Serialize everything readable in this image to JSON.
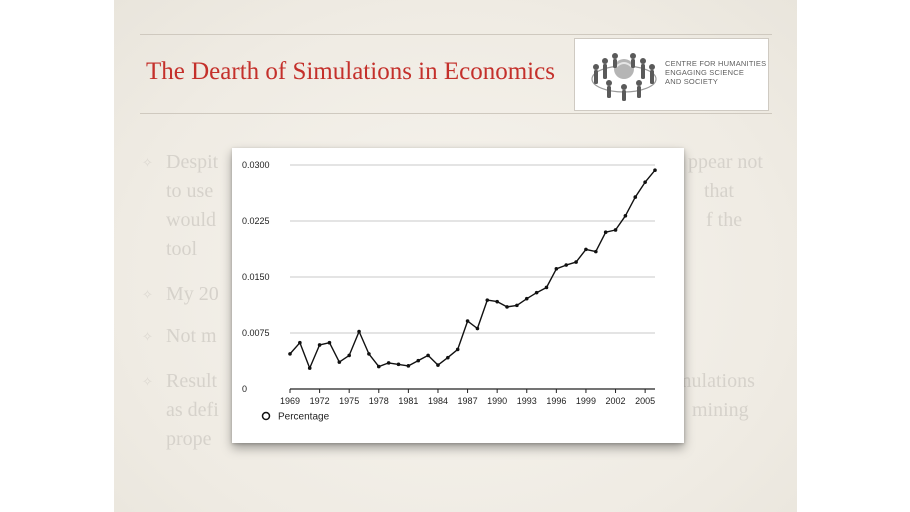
{
  "slide": {
    "title": "The Dearth of Simulations in Economics",
    "logo": {
      "icon": "people-circle-globe-icon",
      "lines": [
        "CENTRE FOR HUMANITIES",
        "ENGAGING SCIENCE",
        "AND SOCIETY"
      ]
    },
    "bullets": [
      {
        "left": "Despit",
        "right": "ppear not"
      },
      {
        "left": "to use",
        "right": "that"
      },
      {
        "left": "would",
        "right": "f the"
      },
      {
        "left": "tool",
        "right": ""
      },
      {
        "left": "My 20",
        "right": ""
      },
      {
        "left": "Not m",
        "right": ""
      },
      {
        "left": "Result",
        "right": "mulations"
      },
      {
        "left": "as defi",
        "right": "mining"
      },
      {
        "left": "prope",
        "right": ""
      }
    ],
    "accent_color": "#c4302b"
  },
  "chart_data": {
    "type": "line",
    "title": "",
    "xlabel": "",
    "ylabel": "",
    "x": [
      1969,
      1970,
      1971,
      1972,
      1973,
      1974,
      1975,
      1976,
      1977,
      1978,
      1979,
      1980,
      1981,
      1982,
      1983,
      1984,
      1985,
      1986,
      1987,
      1988,
      1989,
      1990,
      1991,
      1992,
      1993,
      1994,
      1995,
      1996,
      1997,
      1998,
      1999,
      2000,
      2001,
      2002,
      2003,
      2004,
      2005,
      2006
    ],
    "series": [
      {
        "name": "Percentage",
        "values": [
          0.0047,
          0.0062,
          0.0028,
          0.0059,
          0.0062,
          0.0036,
          0.0045,
          0.0077,
          0.0047,
          0.003,
          0.0035,
          0.0033,
          0.0031,
          0.0038,
          0.0045,
          0.0032,
          0.0042,
          0.0053,
          0.0091,
          0.0081,
          0.0119,
          0.0117,
          0.011,
          0.0112,
          0.0121,
          0.0129,
          0.0136,
          0.0161,
          0.0166,
          0.017,
          0.0187,
          0.0184,
          0.021,
          0.0213,
          0.0232,
          0.0257,
          0.0277,
          0.0293
        ]
      }
    ],
    "xticks": [
      "1969",
      "1972",
      "1975",
      "1978",
      "1981",
      "1984",
      "1987",
      "1990",
      "1993",
      "1996",
      "1999",
      "2002",
      "2005"
    ],
    "yticks": [
      "0",
      "0.0075",
      "0.0150",
      "0.0225",
      "0.0300"
    ],
    "ylim": [
      0,
      0.03
    ],
    "xlim": [
      1969,
      2006
    ],
    "grid": true,
    "legend": "bottom-left"
  }
}
